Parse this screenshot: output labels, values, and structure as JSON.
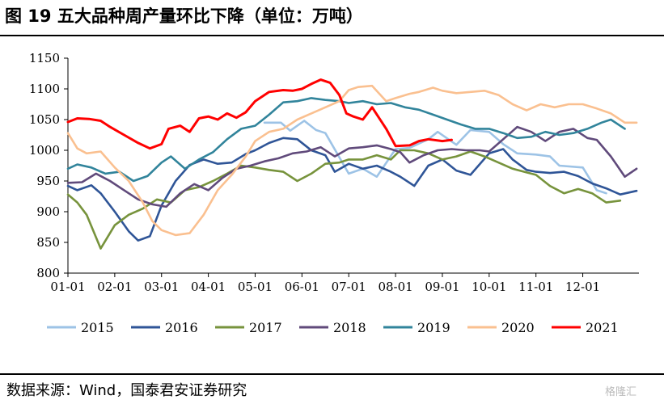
{
  "title": "图 19 五大品种周产量环比下降（单位：万吨）",
  "source": "数据来源：Wind，国泰君安证券研究",
  "watermark": "格隆汇",
  "chart_data": {
    "type": "line",
    "title": "图 19 五大品种周产量环比下降（单位：万吨）",
    "xlabel": "",
    "ylabel": "万吨",
    "ylim": [
      800,
      1150
    ],
    "yticks": [
      800,
      850,
      900,
      950,
      1000,
      1050,
      1100,
      1150
    ],
    "xlim": [
      1,
      13.2
    ],
    "xticks": [
      {
        "label": "01-01",
        "x": 1
      },
      {
        "label": "02-01",
        "x": 2
      },
      {
        "label": "03-01",
        "x": 3
      },
      {
        "label": "04-01",
        "x": 4
      },
      {
        "label": "05-01",
        "x": 5
      },
      {
        "label": "06-01",
        "x": 6
      },
      {
        "label": "07-01",
        "x": 7
      },
      {
        "label": "08-01",
        "x": 8
      },
      {
        "label": "09-01",
        "x": 9
      },
      {
        "label": "10-01",
        "x": 10
      },
      {
        "label": "11-01",
        "x": 11
      },
      {
        "label": "12-01",
        "x": 12
      }
    ],
    "grid": false,
    "legend_position": "bottom",
    "series": [
      {
        "name": "2015",
        "color": "#9dc3e6",
        "x": [
          5.2,
          5.55,
          5.75,
          6.05,
          6.3,
          6.5,
          7.0,
          7.3,
          7.6,
          8.0,
          8.3,
          8.7,
          8.9,
          9.3,
          9.6,
          10.0,
          10.3,
          10.6,
          11.0,
          11.3,
          11.5,
          12.0,
          12.3,
          12.5
        ],
        "values": [
          1045,
          1045,
          1032,
          1048,
          1033,
          1028,
          962,
          970,
          957,
          1002,
          1004,
          1018,
          1030,
          1009,
          1033,
          1030,
          1010,
          995,
          993,
          990,
          975,
          972,
          935,
          930
        ]
      },
      {
        "name": "2016",
        "color": "#2f5597",
        "x": [
          1,
          1.2,
          1.5,
          1.7,
          2.0,
          2.3,
          2.5,
          2.75,
          3.0,
          3.3,
          3.6,
          3.9,
          4.2,
          4.5,
          4.8,
          5.0,
          5.3,
          5.6,
          5.9,
          6.2,
          6.5,
          6.7,
          7.0,
          7.3,
          7.6,
          7.9,
          8.1,
          8.4,
          8.7,
          9.0,
          9.3,
          9.6,
          10.0,
          10.3,
          10.5,
          10.8,
          11.0,
          11.3,
          11.6,
          11.9,
          12.2,
          12.5,
          12.8,
          13.15
        ],
        "values": [
          942,
          935,
          943,
          930,
          900,
          868,
          853,
          860,
          910,
          950,
          976,
          985,
          978,
          980,
          994,
          1000,
          1012,
          1020,
          1018,
          1000,
          992,
          965,
          978,
          970,
          975,
          965,
          957,
          942,
          975,
          985,
          967,
          960,
          995,
          1002,
          985,
          968,
          965,
          963,
          965,
          958,
          946,
          938,
          928,
          934
        ]
      },
      {
        "name": "2017",
        "color": "#77933c",
        "x": [
          1,
          1.2,
          1.4,
          1.7,
          2.0,
          2.3,
          2.6,
          2.9,
          3.2,
          3.5,
          3.8,
          4.1,
          4.4,
          4.7,
          5.0,
          5.3,
          5.6,
          5.9,
          6.2,
          6.5,
          6.8,
          7.0,
          7.3,
          7.6,
          7.9,
          8.1,
          8.4,
          8.7,
          9.0,
          9.3,
          9.6,
          9.9,
          10.2,
          10.5,
          10.8,
          11.0,
          11.3,
          11.6,
          11.9,
          12.2,
          12.5,
          12.8
        ],
        "values": [
          928,
          915,
          895,
          840,
          878,
          895,
          905,
          920,
          915,
          935,
          940,
          950,
          962,
          975,
          972,
          968,
          965,
          950,
          962,
          978,
          980,
          985,
          985,
          992,
          985,
          1000,
          1000,
          995,
          985,
          990,
          998,
          990,
          980,
          970,
          964,
          960,
          942,
          930,
          937,
          930,
          915,
          918
        ]
      },
      {
        "name": "2018",
        "color": "#604a7b",
        "x": [
          1,
          1.3,
          1.6,
          1.9,
          2.2,
          2.5,
          2.8,
          3.1,
          3.4,
          3.7,
          4.0,
          4.3,
          4.6,
          4.9,
          5.2,
          5.5,
          5.8,
          6.1,
          6.4,
          6.7,
          7.0,
          7.3,
          7.6,
          7.9,
          8.1,
          8.3,
          8.6,
          8.9,
          9.2,
          9.5,
          9.8,
          10.0,
          10.3,
          10.6,
          10.9,
          11.2,
          11.5,
          11.8,
          12.1,
          12.3,
          12.6,
          12.9,
          13.15
        ],
        "values": [
          947,
          948,
          962,
          950,
          935,
          920,
          912,
          908,
          930,
          945,
          935,
          955,
          970,
          975,
          982,
          987,
          995,
          998,
          1005,
          990,
          1003,
          1005,
          1008,
          1002,
          997,
          980,
          992,
          1000,
          1002,
          1000,
          1000,
          998,
          1018,
          1038,
          1030,
          1015,
          1030,
          1035,
          1020,
          1017,
          990,
          957,
          970
        ]
      },
      {
        "name": "2019",
        "color": "#31849b",
        "x": [
          1,
          1.2,
          1.5,
          1.8,
          2.1,
          2.4,
          2.7,
          3.0,
          3.2,
          3.5,
          3.8,
          4.1,
          4.4,
          4.7,
          5.0,
          5.3,
          5.6,
          5.9,
          6.2,
          6.5,
          6.8,
          7.0,
          7.3,
          7.6,
          7.9,
          8.2,
          8.5,
          8.8,
          9.1,
          9.4,
          9.7,
          10.0,
          10.3,
          10.6,
          10.9,
          11.2,
          11.5,
          11.8,
          12.1,
          12.4,
          12.6,
          12.9
        ],
        "values": [
          970,
          977,
          972,
          962,
          965,
          950,
          958,
          980,
          990,
          970,
          985,
          997,
          1018,
          1035,
          1040,
          1058,
          1078,
          1080,
          1085,
          1082,
          1080,
          1077,
          1080,
          1075,
          1077,
          1070,
          1066,
          1058,
          1050,
          1042,
          1035,
          1035,
          1028,
          1020,
          1022,
          1030,
          1025,
          1028,
          1035,
          1045,
          1050,
          1035
        ]
      },
      {
        "name": "2020",
        "color": "#fac090",
        "x": [
          1,
          1.2,
          1.4,
          1.7,
          2.0,
          2.3,
          2.6,
          2.8,
          3.0,
          3.3,
          3.6,
          3.9,
          4.2,
          4.5,
          4.8,
          5.0,
          5.3,
          5.6,
          5.9,
          6.2,
          6.5,
          6.8,
          7.0,
          7.2,
          7.5,
          7.8,
          8.0,
          8.3,
          8.5,
          8.8,
          9.0,
          9.3,
          9.6,
          9.9,
          10.2,
          10.5,
          10.8,
          11.1,
          11.4,
          11.7,
          12.0,
          12.3,
          12.6,
          12.9,
          13.15
        ],
        "values": [
          1028,
          1003,
          995,
          998,
          972,
          950,
          915,
          885,
          870,
          862,
          865,
          895,
          935,
          960,
          990,
          1015,
          1030,
          1035,
          1050,
          1060,
          1070,
          1080,
          1098,
          1103,
          1105,
          1080,
          1085,
          1092,
          1095,
          1102,
          1097,
          1093,
          1095,
          1097,
          1090,
          1075,
          1065,
          1075,
          1070,
          1075,
          1075,
          1068,
          1060,
          1045,
          1045
        ]
      },
      {
        "name": "2021",
        "color": "#ff0000",
        "x": [
          1,
          1.2,
          1.45,
          1.7,
          1.9,
          2.2,
          2.5,
          2.75,
          3.0,
          3.15,
          3.4,
          3.6,
          3.8,
          4.0,
          4.2,
          4.4,
          4.6,
          4.8,
          5.0,
          5.3,
          5.6,
          5.8,
          6.0,
          6.2,
          6.4,
          6.6,
          6.8,
          6.95,
          7.1,
          7.3,
          7.5,
          7.8,
          8.0,
          8.3,
          8.5,
          8.7,
          9.0,
          9.2
        ],
        "values": [
          1046,
          1052,
          1051,
          1048,
          1038,
          1025,
          1012,
          1003,
          1010,
          1035,
          1040,
          1030,
          1052,
          1055,
          1050,
          1060,
          1053,
          1062,
          1080,
          1095,
          1098,
          1097,
          1100,
          1108,
          1115,
          1110,
          1090,
          1060,
          1055,
          1050,
          1070,
          1035,
          1007,
          1008,
          1015,
          1018,
          1015,
          1017
        ]
      }
    ]
  }
}
